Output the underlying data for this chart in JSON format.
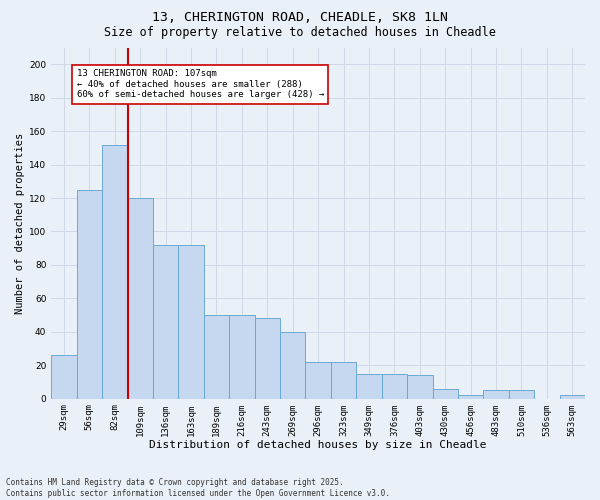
{
  "title1": "13, CHERINGTON ROAD, CHEADLE, SK8 1LN",
  "title2": "Size of property relative to detached houses in Cheadle",
  "xlabel": "Distribution of detached houses by size in Cheadle",
  "ylabel": "Number of detached properties",
  "categories": [
    "29sqm",
    "56sqm",
    "82sqm",
    "109sqm",
    "136sqm",
    "163sqm",
    "189sqm",
    "216sqm",
    "243sqm",
    "269sqm",
    "296sqm",
    "323sqm",
    "349sqm",
    "376sqm",
    "403sqm",
    "430sqm",
    "456sqm",
    "483sqm",
    "510sqm",
    "536sqm",
    "563sqm"
  ],
  "values": [
    26,
    125,
    152,
    120,
    92,
    92,
    50,
    50,
    48,
    40,
    22,
    22,
    15,
    15,
    14,
    6,
    2,
    5,
    5,
    0,
    2
  ],
  "bar_color": "#c5d8f0",
  "bar_edge_color": "#6aaad4",
  "vline_x_index": 3,
  "vline_color": "#cc0000",
  "annotation_text": "13 CHERINGTON ROAD: 107sqm\n← 40% of detached houses are smaller (288)\n60% of semi-detached houses are larger (428) →",
  "annotation_box_color": "#ffffff",
  "annotation_box_edge": "#cc0000",
  "ylim": [
    0,
    210
  ],
  "yticks": [
    0,
    20,
    40,
    60,
    80,
    100,
    120,
    140,
    160,
    180,
    200
  ],
  "grid_color": "#d0d8e8",
  "background_color": "#eaf0f8",
  "footer1": "Contains HM Land Registry data © Crown copyright and database right 2025.",
  "footer2": "Contains public sector information licensed under the Open Government Licence v3.0.",
  "title1_fontsize": 9.5,
  "title2_fontsize": 8.5,
  "xlabel_fontsize": 8,
  "ylabel_fontsize": 7.5,
  "tick_fontsize": 6.5,
  "annotation_fontsize": 6.5,
  "footer_fontsize": 5.5
}
